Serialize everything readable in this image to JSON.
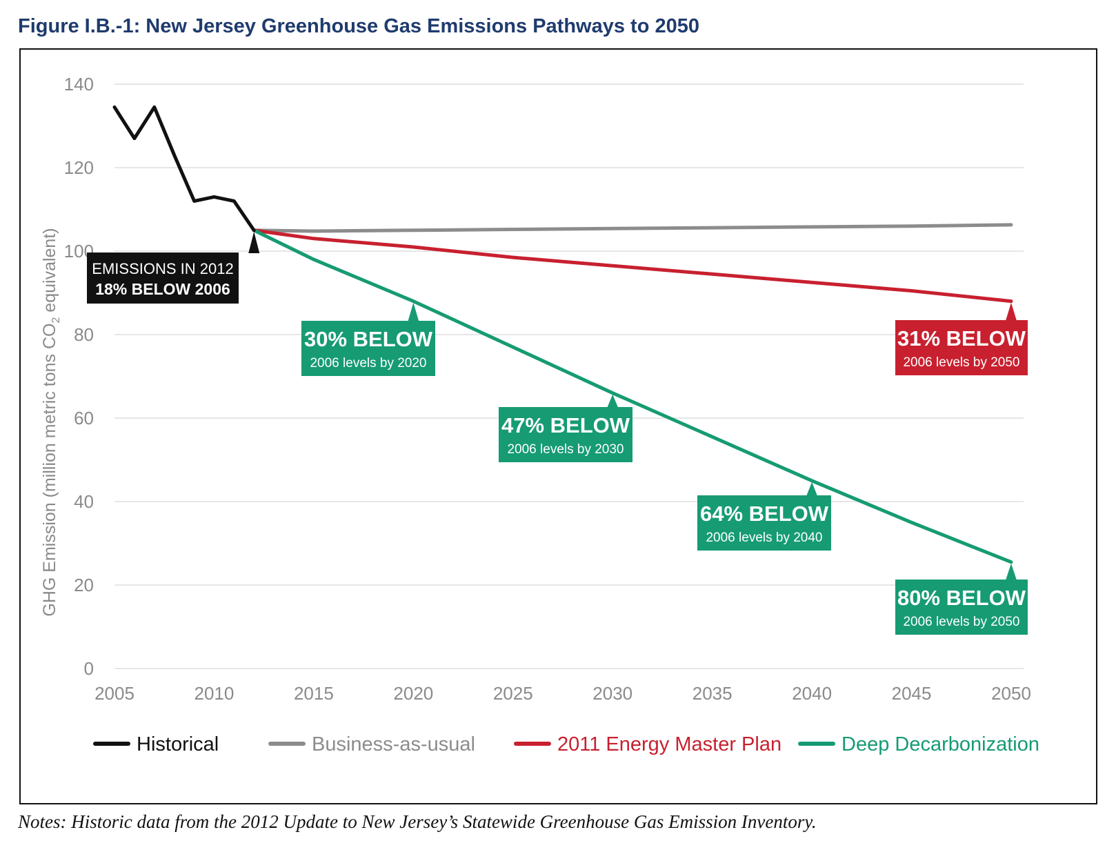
{
  "title": "Figure I.B.-1: New Jersey Greenhouse Gas Emissions Pathways to 2050",
  "notes": "Notes: Historic data from the 2012 Update to New Jersey’s Statewide Greenhouse Gas Emission Inventory.",
  "colors": {
    "historical": "#111111",
    "bau": "#8c8c8c",
    "emp": "#c8202f",
    "deep": "#169b73",
    "grid": "#e6e6e6",
    "axis_text": "#8a8a8a",
    "title": "#1f3b6e"
  },
  "chart_data": {
    "type": "line",
    "title": "Figure I.B.-1: New Jersey Greenhouse Gas Emissions Pathways to 2050",
    "xlabel": "",
    "ylabel": "GHG Emission (million metric tons CO",
    "ylabel_sub": "2",
    "ylabel_end": " equivalent)",
    "xlim": [
      2005,
      2050
    ],
    "ylim": [
      0,
      140
    ],
    "x_ticks": [
      2005,
      2010,
      2015,
      2020,
      2025,
      2030,
      2035,
      2040,
      2045,
      2050
    ],
    "y_ticks": [
      0,
      20,
      40,
      60,
      80,
      100,
      120,
      140
    ],
    "grid": "horizontal",
    "legend_position": "bottom",
    "series": [
      {
        "name": "Historical",
        "color_key": "historical",
        "x": [
          2005,
          2006,
          2007,
          2008,
          2009,
          2010,
          2011,
          2012
        ],
        "y": [
          134.5,
          127,
          134.5,
          123,
          112,
          113,
          112,
          105
        ]
      },
      {
        "name": "Business-as-usual",
        "color_key": "bau",
        "x": [
          2012,
          2015,
          2020,
          2025,
          2030,
          2035,
          2040,
          2045,
          2050
        ],
        "y": [
          105,
          104.8,
          105,
          105.2,
          105.4,
          105.6,
          105.8,
          106,
          106.3
        ]
      },
      {
        "name": "2011 Energy Master Plan",
        "color_key": "emp",
        "x": [
          2012,
          2015,
          2020,
          2025,
          2030,
          2035,
          2040,
          2045,
          2050
        ],
        "y": [
          105,
          103,
          101,
          98.5,
          96.5,
          94.5,
          92.5,
          90.5,
          88
        ]
      },
      {
        "name": "Deep Decarbonization",
        "color_key": "deep",
        "x": [
          2012,
          2015,
          2020,
          2025,
          2030,
          2035,
          2040,
          2045,
          2050
        ],
        "y": [
          105,
          98,
          88,
          77,
          66,
          55.5,
          45,
          35,
          25.5
        ]
      }
    ],
    "annotations": [
      {
        "kind": "historical",
        "color_key": "historical",
        "lines": [
          "EMISSIONS IN 2012",
          "18% BELOW 2006"
        ],
        "point": [
          2012,
          105
        ]
      },
      {
        "kind": "deep",
        "color_key": "deep",
        "lines": [
          "30% BELOW",
          "2006 levels by 2020"
        ],
        "point": [
          2020,
          88
        ]
      },
      {
        "kind": "deep",
        "color_key": "deep",
        "lines": [
          "47% BELOW",
          "2006 levels by 2030"
        ],
        "point": [
          2030,
          66
        ]
      },
      {
        "kind": "deep",
        "color_key": "deep",
        "lines": [
          "64% BELOW",
          "2006 levels by 2040"
        ],
        "point": [
          2040,
          45
        ]
      },
      {
        "kind": "deep",
        "color_key": "deep",
        "lines": [
          "80% BELOW",
          "2006 levels by 2050"
        ],
        "point": [
          2050,
          25.5
        ]
      },
      {
        "kind": "emp",
        "color_key": "emp",
        "lines": [
          "31% BELOW",
          "2006 levels by 2050"
        ],
        "point": [
          2050,
          88
        ]
      }
    ]
  }
}
